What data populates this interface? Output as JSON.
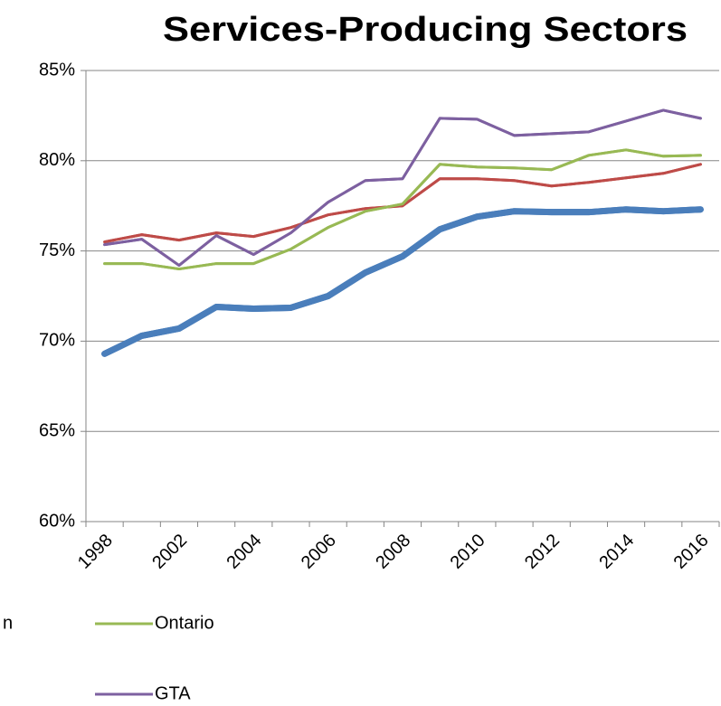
{
  "chart_data": {
    "type": "line",
    "title": "Services-Producing Sectors",
    "categories": [
      "1998",
      null,
      "2002",
      null,
      "2004",
      null,
      "2006",
      null,
      "2008",
      null,
      "2010",
      null,
      "2012",
      null,
      "2014",
      null,
      "2016"
    ],
    "ylim": [
      60,
      85
    ],
    "yticks": [
      {
        "value": 60,
        "label": "60%"
      },
      {
        "value": 65,
        "label": "65%"
      },
      {
        "value": 70,
        "label": "70%"
      },
      {
        "value": 75,
        "label": "75%"
      },
      {
        "value": 80,
        "label": "80%"
      },
      {
        "value": 85,
        "label": "85%"
      }
    ],
    "grid": true,
    "series": [
      {
        "name": "n",
        "color": "#4a7ebb",
        "width": 7,
        "values": [
          69.3,
          70.3,
          70.7,
          71.9,
          71.8,
          71.85,
          72.5,
          73.8,
          74.7,
          76.2,
          76.9,
          77.2,
          77.15,
          77.15,
          77.3,
          77.2,
          77.3
        ]
      },
      {
        "color": "#be4b48",
        "width": 3,
        "values": [
          75.5,
          75.9,
          75.6,
          76.0,
          75.8,
          76.3,
          77.0,
          77.35,
          77.5,
          79.0,
          79.0,
          78.9,
          78.6,
          78.8,
          79.05,
          79.3,
          79.8
        ]
      },
      {
        "name": "Ontario",
        "color": "#98b954",
        "width": 3,
        "values": [
          74.3,
          74.3,
          74.0,
          74.3,
          74.3,
          75.1,
          76.3,
          77.2,
          77.6,
          79.8,
          79.65,
          79.6,
          79.5,
          80.3,
          80.6,
          80.25,
          80.3
        ]
      },
      {
        "name": "GTA",
        "color": "#7d60a0",
        "width": 3,
        "values": [
          75.35,
          75.65,
          74.2,
          75.85,
          74.8,
          76.0,
          77.7,
          78.9,
          79.0,
          82.35,
          82.3,
          81.4,
          81.5,
          81.6,
          82.2,
          82.8,
          82.35
        ]
      }
    ]
  }
}
